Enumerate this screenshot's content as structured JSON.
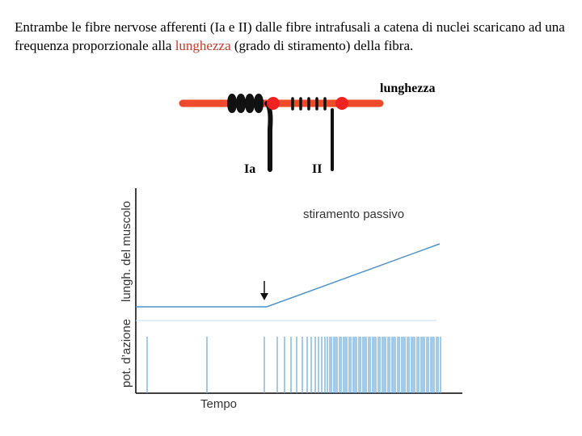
{
  "intro": {
    "part1": "Entrambe le fibre nervose afferenti (Ia e II) dalle fibre intrafusali a catena di nuclei scaricano ad una frequenza proporzionale alla ",
    "highlight": "lunghezza",
    "part2": " (grado di stiramento) della fibra."
  },
  "fiber": {
    "length_label": "lunghezza",
    "fiber_Ia_label": "Ia",
    "fiber_II_label": "II"
  },
  "graph": {
    "stretch_label": "stiramento passivo",
    "ylabel_top": "lungh. del muscolo",
    "ylabel_bottom": "pot. d’azione",
    "xlabel": "Tempo"
  },
  "colors": {
    "highlight": "#c0392b",
    "fiber": "#ee4b2b",
    "trace": "#4f93c9",
    "spikes": "#6aa6d1"
  }
}
